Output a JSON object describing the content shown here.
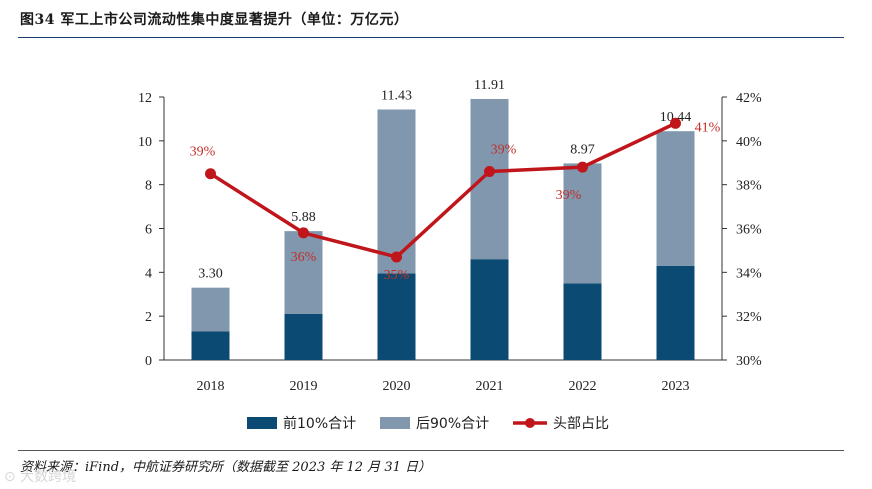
{
  "header": {
    "title": "图34  军工上市公司流动性集中度显著提升（单位：万亿元）"
  },
  "footer": {
    "source": "资料来源：iFind，中航证券研究所（数据截至 2023 年 12 月 31 日）",
    "watermark": "⊙ 大数跨境"
  },
  "colors": {
    "top10": "#0b4a72",
    "rest90": "#8197ad",
    "ratio": "#c0151b",
    "ratio_label": "#c0302a"
  },
  "chart_data": {
    "type": "bar",
    "title": "军工上市公司流动性集中度显著提升（单位：万亿元）",
    "categories": [
      "2018",
      "2019",
      "2020",
      "2021",
      "2022",
      "2023"
    ],
    "series": [
      {
        "name": "前10%合计",
        "type": "bar",
        "stacked": true,
        "axis": "left",
        "values": [
          1.3,
          2.1,
          3.95,
          4.6,
          3.5,
          4.3
        ]
      },
      {
        "name": "后90%合计",
        "type": "bar",
        "stacked": true,
        "axis": "left",
        "values": [
          2.0,
          3.78,
          7.48,
          7.31,
          5.47,
          6.14
        ]
      },
      {
        "name": "头部占比",
        "type": "line",
        "axis": "right",
        "values": [
          38.5,
          35.8,
          34.7,
          38.6,
          38.8,
          40.8
        ],
        "labels": [
          "39%",
          "36%",
          "35%",
          "39%",
          "39%",
          "41%"
        ]
      }
    ],
    "totals": [
      "3.30",
      "5.88",
      "11.43",
      "11.91",
      "8.97",
      "10.44"
    ],
    "y_left": {
      "min": 0,
      "max": 12,
      "ticks": [
        "0",
        "2",
        "4",
        "6",
        "8",
        "10",
        "12"
      ]
    },
    "y_right": {
      "min": 30,
      "max": 42,
      "ticks": [
        "30%",
        "32%",
        "34%",
        "36%",
        "38%",
        "40%",
        "42%"
      ]
    },
    "legend": [
      "前10%合计",
      "后90%合计",
      "头部占比"
    ],
    "legend_position": "bottom",
    "grid": false
  }
}
